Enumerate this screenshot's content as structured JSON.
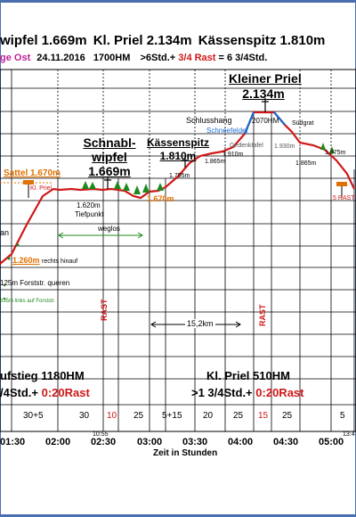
{
  "header": {
    "peaks_line": [
      "wipfel 1.669m",
      "Kl. Priel 2.134m",
      "Kässenspitz 1.810m"
    ],
    "route": "ge Ost",
    "date": "24.11.2016",
    "elevation_gain": "1700HM",
    "duration_part1": ">6Std.+",
    "rest_part": "3/4 Rast",
    "duration_total": "= 6 3/4Std."
  },
  "peaks": {
    "kleiner_priel_line1": "Kleiner Priel",
    "kleiner_priel_line2": "2.134m",
    "schnabl_line1": "Schnabl-",
    "schnabl_line2": "wipfel",
    "schnabl_line3": "1.669m",
    "kaessen_line1": "Kässenspitz",
    "kaessen_line2": "1.810m"
  },
  "labels": {
    "schlusshang": "Schlusshang",
    "schneefelder": "Schneefelder",
    "gedenktafel": "Gedenktafel",
    "suedgrat": "Südgrat",
    "sattel": "Sattel 1.670m",
    "kl_priel_sign": "Kl. Priel",
    "tiefpunkt_alt": "1.620m",
    "tiefpunkt": "Tiefpunkt",
    "wegLos": "weglos",
    "an": "an",
    "forststr_hinauf": "1.260m",
    "forststr_hinauf_txt": "rechts hinauf",
    "forststr_queren": "125m Forststr. queren",
    "forststr_links": "835m links auf Forststr.",
    "distance": "15,2km",
    "rast": "RAST",
    "five_rast": "5 RAST",
    "alt_1670_mid": "1.670m",
    "alt_1795": "1.795m",
    "alt_1865_a": "1.865m",
    "alt_1910": "1.910m",
    "alt_2070": "2070HM",
    "alt_1930": "1.930m",
    "alt_1865_b": "1.865m",
    "alt_1875": "1.875m"
  },
  "bottom": {
    "aufstieg": "ufstieg 1180HM",
    "aufstieg_std": "/4Std.+",
    "aufstieg_rast": "0:20Rast",
    "klpriel": "Kl. Priel 510HM",
    "klpriel_std": ">1 3/4Std.+",
    "klpriel_rast": "0:20Rast",
    "segments": [
      "30+5",
      "30",
      "10",
      "25",
      "5+15",
      "20",
      "25",
      "15",
      "25",
      "5"
    ],
    "times": [
      "01:30",
      "02:00",
      "02:30",
      "03:00",
      "03:30",
      "04:00",
      "04:30",
      "05:00"
    ],
    "time_1055": "10:55",
    "time_134": "13:4",
    "axis_title": "Zeit in Stunden"
  },
  "colors": {
    "profile": "#d01818",
    "grid": "#000000",
    "orange": "#e07000",
    "blue": "#1a6bd0",
    "green": "#1e8a1e",
    "frame": "#4a6fb0"
  },
  "icons": [
    "summit-cross-icon",
    "signpost-icon",
    "tree-icon"
  ]
}
